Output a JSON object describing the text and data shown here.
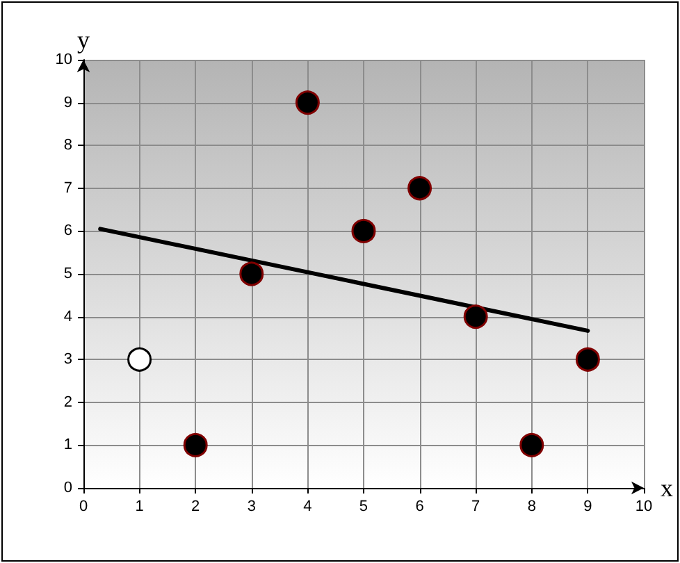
{
  "chart_data": {
    "type": "scatter",
    "xlabel": "x",
    "ylabel": "y",
    "xlim": [
      0,
      10
    ],
    "ylim": [
      0,
      10
    ],
    "xticks": [
      0,
      1,
      2,
      3,
      4,
      5,
      6,
      7,
      8,
      9,
      10
    ],
    "yticks": [
      0,
      1,
      2,
      3,
      4,
      5,
      6,
      7,
      8,
      9,
      10
    ],
    "grid": true,
    "marker": "circle",
    "series": [
      {
        "color": "#ffffff",
        "x": [
          1
        ],
        "values": [
          3
        ]
      },
      {
        "color": "#000000",
        "x": [
          2,
          3,
          4,
          5,
          6,
          7,
          8,
          9
        ],
        "values": [
          1,
          5,
          9,
          6,
          7,
          4,
          1,
          3
        ]
      },
      {
        "type": "line",
        "marker": "none",
        "color": "#000000",
        "x": [
          0.3,
          9
        ],
        "values": [
          6.05,
          3.67
        ]
      }
    ]
  }
}
